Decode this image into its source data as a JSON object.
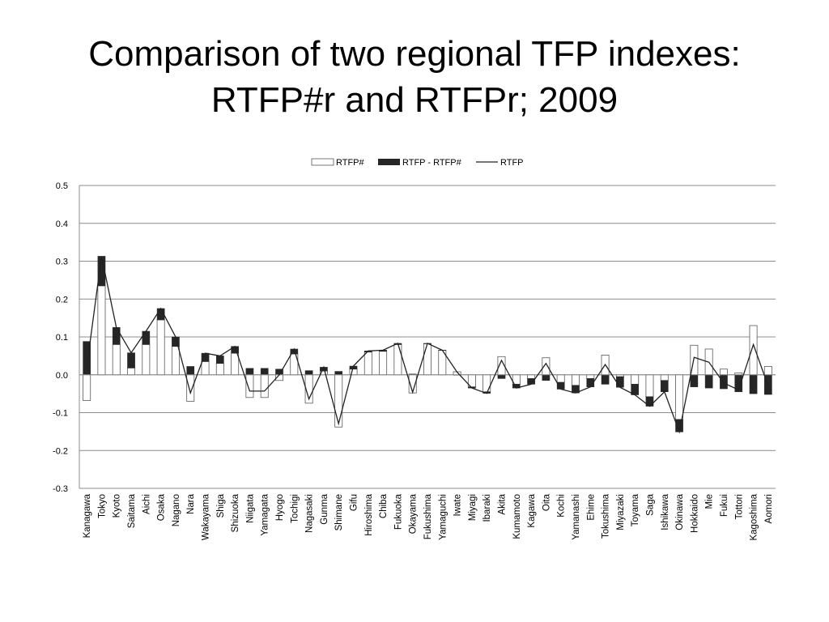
{
  "title": {
    "line1": "Comparison of two regional TFP indexes:",
    "line2": "RTFP#r and RTFPr; 2009"
  },
  "chart_data": {
    "type": "bar",
    "ylim": [
      -0.3,
      0.5
    ],
    "yticks": [
      0.5,
      0.4,
      0.3,
      0.2,
      0.1,
      0.0,
      -0.1,
      -0.2,
      -0.3
    ],
    "ytick_labels": [
      "0.5",
      "0.4",
      "0.3",
      "0.2",
      "0.1",
      "0.0",
      "-0.1",
      "-0.2",
      "-0.3"
    ],
    "grid": true,
    "legend_position": "top-center",
    "colors": {
      "rtfp_hash": "#ffffff",
      "diff": "#262626",
      "rtfp": "#222222",
      "grid": "#8c8c8c"
    },
    "categories": [
      "Kanagawa",
      "Tokyo",
      "Kyoto",
      "Saitama",
      "Aichi",
      "Osaka",
      "Nagano",
      "Nara",
      "Wakayama",
      "Shiga",
      "Shizuoka",
      "Niigata",
      "Yamagata",
      "Hyogo",
      "Tochigi",
      "Nagasaki",
      "Gunma",
      "Shimane",
      "Gifu",
      "Hiroshima",
      "Chiba",
      "Fukuoka",
      "Okayama",
      "Fukushima",
      "Yamaguchi",
      "Iwate",
      "Miyagi",
      "Ibaraki",
      "Akita",
      "Kumamoto",
      "Kagawa",
      "Oita",
      "Kochi",
      "Yamanashi",
      "Ehime",
      "Tokushima",
      "Miyazaki",
      "Toyama",
      "Saga",
      "Ishikawa",
      "Okinawa",
      "Hokkaido",
      "Mie",
      "Fukui",
      "Tottori",
      "Kagoshima",
      "Aomori"
    ],
    "series": [
      {
        "name": "RTFP#",
        "kind": "bar-outline",
        "values": [
          -0.068,
          0.235,
          0.08,
          0.018,
          0.08,
          0.145,
          0.075,
          -0.07,
          0.035,
          0.03,
          0.057,
          -0.06,
          -0.06,
          -0.015,
          0.055,
          -0.075,
          0.01,
          -0.138,
          0.015,
          0.06,
          0.062,
          0.08,
          -0.048,
          0.082,
          0.065,
          0.008,
          -0.032,
          -0.045,
          0.048,
          -0.025,
          -0.01,
          0.045,
          -0.02,
          -0.028,
          -0.01,
          0.052,
          -0.005,
          -0.025,
          -0.058,
          -0.015,
          -0.118,
          0.078,
          0.068,
          0.015,
          0.005,
          0.13,
          0.022
        ]
      },
      {
        "name": "RTFP - RTFP#",
        "kind": "bar-filled",
        "values": [
          0.088,
          0.078,
          0.045,
          0.04,
          0.035,
          0.03,
          0.025,
          0.022,
          0.022,
          0.02,
          0.018,
          0.017,
          0.017,
          0.015,
          0.013,
          0.011,
          0.01,
          0.009,
          0.008,
          0.003,
          0.003,
          0.003,
          0.002,
          0.001,
          0.0,
          -0.001,
          -0.003,
          -0.004,
          -0.01,
          -0.01,
          -0.015,
          -0.015,
          -0.018,
          -0.02,
          -0.022,
          -0.025,
          -0.028,
          -0.028,
          -0.025,
          -0.03,
          -0.033,
          -0.032,
          -0.035,
          -0.037,
          -0.045,
          -0.05,
          -0.052
        ]
      },
      {
        "name": "RTFP",
        "kind": "line",
        "values": [
          0.02,
          0.313,
          0.125,
          0.058,
          0.115,
          0.175,
          0.1,
          -0.048,
          0.057,
          0.05,
          0.075,
          -0.043,
          -0.043,
          0.0,
          0.068,
          -0.064,
          0.02,
          -0.129,
          0.023,
          0.063,
          0.065,
          0.083,
          -0.046,
          0.083,
          0.065,
          0.007,
          -0.035,
          -0.049,
          0.038,
          -0.035,
          -0.025,
          0.03,
          -0.038,
          -0.048,
          -0.032,
          0.027,
          -0.033,
          -0.053,
          -0.083,
          -0.045,
          -0.151,
          0.046,
          0.033,
          -0.022,
          -0.04,
          0.08,
          -0.03
        ]
      }
    ]
  }
}
